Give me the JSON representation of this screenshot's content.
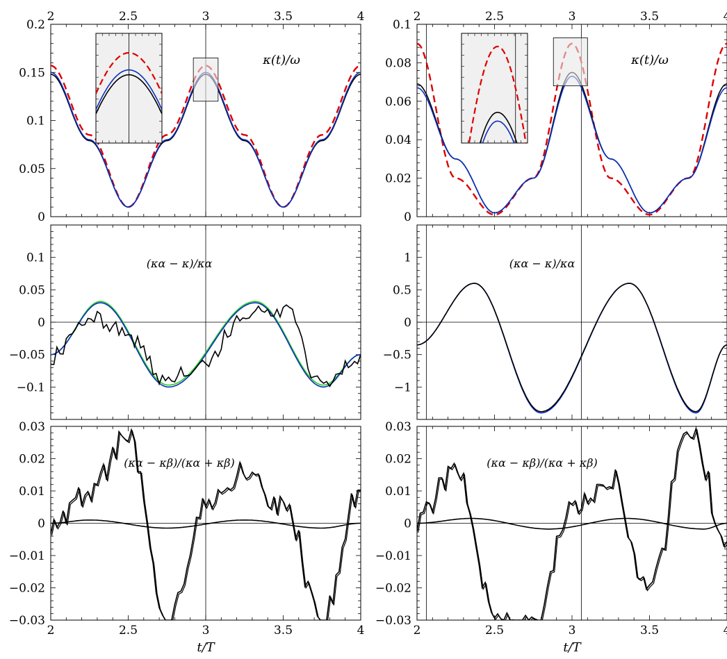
{
  "chart_data": [
    {
      "type": "line",
      "panel": "left-top",
      "annotation": "κ(t)/ω",
      "xlim": [
        2,
        4
      ],
      "ylim": [
        0,
        0.2
      ],
      "xticks": [
        "2",
        "2.5",
        "3",
        "3.5",
        "4"
      ],
      "yticks": [
        "0",
        "0.05",
        "0.1",
        "0.15",
        "0.2"
      ],
      "vline": 3,
      "series": [
        {
          "color": "#dd0000",
          "style": "dashed",
          "x": [
            2,
            2.25,
            2.5,
            2.75,
            3,
            3.25,
            3.5,
            3.75,
            4
          ],
          "values": [
            0.157,
            0.085,
            0.01,
            0.085,
            0.157,
            0.085,
            0.01,
            0.085,
            0.157
          ]
        },
        {
          "color": "#000000",
          "style": "solid",
          "x": [
            2,
            2.25,
            2.5,
            2.75,
            3,
            3.25,
            3.5,
            3.75,
            4
          ],
          "values": [
            0.148,
            0.079,
            0.01,
            0.079,
            0.148,
            0.079,
            0.01,
            0.079,
            0.148
          ]
        },
        {
          "color": "#0b2fbf",
          "style": "solid",
          "x": [
            2,
            2.25,
            2.5,
            2.75,
            3,
            3.25,
            3.5,
            3.75,
            4
          ],
          "values": [
            0.15,
            0.08,
            0.01,
            0.08,
            0.15,
            0.08,
            0.01,
            0.08,
            0.15
          ]
        }
      ],
      "inset": {
        "xrange": [
          2.92,
          3.08
        ],
        "yrange": [
          0.12,
          0.165
        ]
      }
    },
    {
      "type": "line",
      "panel": "right-top",
      "annotation": "κ(t)/ω",
      "xlim": [
        2,
        4
      ],
      "ylim": [
        0,
        0.1
      ],
      "xticks": [
        "2",
        "2.5",
        "3",
        "3.5",
        "4"
      ],
      "yticks": [
        "0",
        "0.02",
        "0.04",
        "0.06",
        "0.08",
        "0.1"
      ],
      "vlines": [
        2.06,
        3.06
      ],
      "series": [
        {
          "color": "#dd0000",
          "style": "dashed",
          "x": [
            2,
            2.25,
            2.5,
            2.75,
            3,
            3.25,
            3.5,
            3.75,
            4
          ],
          "values": [
            0.09,
            0.02,
            0.001,
            0.02,
            0.09,
            0.02,
            0.001,
            0.02,
            0.09
          ]
        },
        {
          "color": "#000000",
          "style": "solid",
          "x": [
            2,
            2.25,
            2.5,
            2.75,
            3,
            3.25,
            3.5,
            3.75,
            4
          ],
          "values": [
            0.069,
            0.03,
            0.002,
            0.02,
            0.075,
            0.03,
            0.002,
            0.02,
            0.069
          ]
        },
        {
          "color": "#0b2fbf",
          "style": "solid",
          "x": [
            2,
            2.25,
            2.5,
            2.75,
            3,
            3.25,
            3.5,
            3.75,
            4
          ],
          "values": [
            0.067,
            0.03,
            0.002,
            0.02,
            0.073,
            0.03,
            0.002,
            0.02,
            0.067
          ]
        }
      ],
      "inset": {
        "xrange": [
          2.88,
          3.1
        ],
        "yrange": [
          0.068,
          0.093
        ]
      }
    },
    {
      "type": "line",
      "panel": "left-middle",
      "annotation": "(κα − κ)/κα",
      "xlim": [
        2,
        4
      ],
      "ylim": [
        -0.15,
        0.15
      ],
      "xticks": [
        "2",
        "2.5",
        "3",
        "3.5",
        "4"
      ],
      "yticks": [
        "−0.1",
        "−0.05",
        "0",
        "0.05",
        "0.1"
      ],
      "vline": 3,
      "series": [
        {
          "color": "#22cc22",
          "style": "solid",
          "x": [
            2,
            2.32,
            2.76,
            3.32,
            3.76,
            4
          ],
          "values": [
            -0.05,
            0.032,
            -0.097,
            0.032,
            -0.097,
            -0.05
          ]
        },
        {
          "color": "#0b2fbf",
          "style": "solid",
          "x": [
            2,
            2.32,
            2.76,
            3.32,
            3.76,
            4
          ],
          "values": [
            -0.05,
            0.03,
            -0.1,
            0.03,
            -0.1,
            -0.05
          ]
        },
        {
          "color": "#000000",
          "style": "noisy",
          "x": [
            2,
            2.25,
            2.5,
            2.75,
            3,
            3.25,
            3.5,
            3.75,
            4
          ],
          "values": [
            -0.05,
            0.01,
            -0.02,
            -0.09,
            -0.06,
            0.01,
            0.02,
            -0.09,
            -0.06
          ]
        }
      ]
    },
    {
      "type": "line",
      "panel": "right-middle",
      "annotation": "(κα − κ)/κα",
      "xlim": [
        2,
        4
      ],
      "ylim": [
        -1.5,
        1.5
      ],
      "xticks": [
        "2",
        "2.5",
        "3",
        "3.5",
        "4"
      ],
      "yticks": [
        "−1",
        "−0.5",
        "0",
        "0.5",
        "1"
      ],
      "vlines": [
        2.06,
        3.06
      ],
      "series": [
        {
          "color": "#0b2fbf",
          "style": "solid",
          "x": [
            2,
            2.37,
            2.8,
            3.37,
            3.8,
            4
          ],
          "values": [
            -0.35,
            0.6,
            -1.4,
            0.6,
            -1.4,
            -0.35
          ]
        },
        {
          "color": "#000000",
          "style": "solid",
          "x": [
            2,
            2.37,
            2.8,
            3.37,
            3.8,
            4
          ],
          "values": [
            -0.35,
            0.6,
            -1.38,
            0.6,
            -1.38,
            -0.35
          ]
        }
      ]
    },
    {
      "type": "line",
      "panel": "left-bottom",
      "annotation": "(κα − κβ)/(κα + κβ)",
      "xlim": [
        2,
        4
      ],
      "ylim": [
        -0.03,
        0.03
      ],
      "xticks": [
        "2",
        "2.5",
        "3",
        "3.5",
        "4"
      ],
      "yticks": [
        "−0.03",
        "−0.02",
        "−0.01",
        "0",
        "0.01",
        "0.02",
        "0.03"
      ],
      "xlabel": "t/T",
      "vline": 3,
      "series": [
        {
          "color": "#000000",
          "style": "smooth",
          "x": [
            2,
            2.25,
            2.75,
            3.25,
            3.75,
            4
          ],
          "values": [
            0,
            0.001,
            -0.0015,
            0.001,
            -0.0015,
            0
          ]
        },
        {
          "color": "#000000",
          "style": "noisy-double",
          "x": [
            2,
            2.25,
            2.5,
            2.75,
            3,
            3.25,
            3.5,
            3.75,
            4
          ],
          "values": [
            0,
            0.01,
            0.028,
            -0.03,
            0.005,
            0.015,
            0.005,
            -0.03,
            0.01
          ]
        }
      ]
    },
    {
      "type": "line",
      "panel": "right-bottom",
      "annotation": "(κα − κβ)/(κα + κβ)",
      "xlim": [
        2,
        4
      ],
      "ylim": [
        -0.03,
        0.03
      ],
      "xticks": [
        "2",
        "2.5",
        "3",
        "3.5",
        "4"
      ],
      "yticks": [
        "−0.03",
        "−0.02",
        "−0.01",
        "0",
        "0.01",
        "0.02",
        "0.03"
      ],
      "xlabel": "t/T",
      "vlines": [
        2.06,
        3.06
      ],
      "series": [
        {
          "color": "#000000",
          "style": "smooth",
          "x": [
            2,
            2.35,
            2.85,
            3.35,
            3.85,
            4
          ],
          "values": [
            0,
            0.0015,
            -0.0018,
            0.0015,
            -0.0018,
            0
          ]
        },
        {
          "color": "#000000",
          "style": "noisy-double",
          "x": [
            2,
            2.25,
            2.5,
            2.75,
            3,
            3.25,
            3.5,
            3.75,
            4
          ],
          "values": [
            0,
            0.018,
            -0.03,
            -0.03,
            0.005,
            0.013,
            -0.02,
            0.03,
            -0.005
          ]
        }
      ]
    }
  ],
  "top_xtick_labels": [
    "2",
    "2.5",
    "3",
    "3.5",
    "4"
  ],
  "xlabel": "t/T"
}
